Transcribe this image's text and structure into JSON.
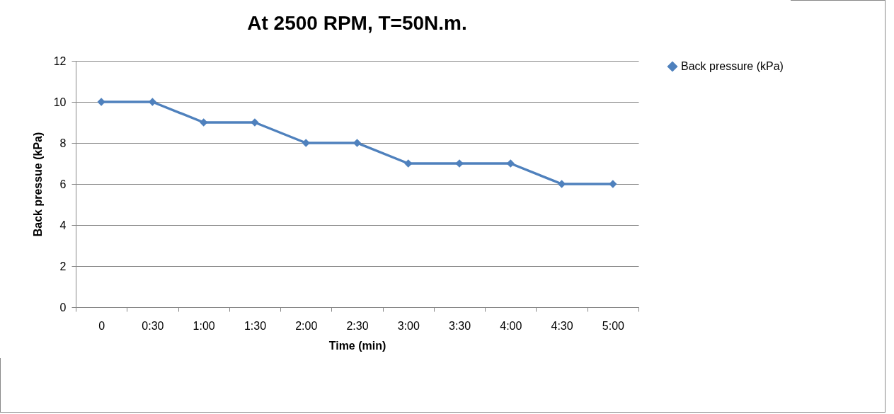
{
  "chart_data": {
    "type": "line",
    "title": "At 2500 RPM, T=50N.m.",
    "xlabel": "Time (min)",
    "ylabel": "Back pressue (kPa)",
    "categories": [
      "0",
      "0:30",
      "1:00",
      "1:30",
      "2:00",
      "2:30",
      "3:00",
      "3:30",
      "4:00",
      "4:30",
      "5:00"
    ],
    "series": [
      {
        "name": "Back pressure (kPa)",
        "color": "#4f81bd",
        "values": [
          10,
          10,
          9,
          9,
          8,
          8,
          7,
          7,
          7,
          6,
          6
        ]
      }
    ],
    "ylim": [
      0,
      12
    ],
    "yticks": [
      0,
      2,
      4,
      6,
      8,
      10,
      12
    ],
    "grid": "y",
    "legend": "right",
    "marker": "diamond",
    "line_style": "solid"
  }
}
